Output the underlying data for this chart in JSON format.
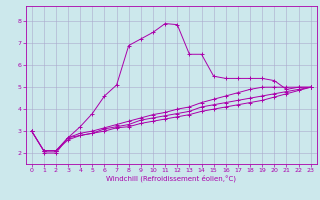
{
  "title": "",
  "xlabel": "Windchill (Refroidissement éolien,°C)",
  "ylabel": "",
  "background_color": "#cce8ec",
  "line_color": "#aa00aa",
  "grid_color": "#aaaacc",
  "xlim": [
    -0.5,
    23.5
  ],
  "ylim": [
    1.5,
    8.7
  ],
  "yticks": [
    2,
    3,
    4,
    5,
    6,
    7,
    8
  ],
  "xticks": [
    0,
    1,
    2,
    3,
    4,
    5,
    6,
    7,
    8,
    9,
    10,
    11,
    12,
    13,
    14,
    15,
    16,
    17,
    18,
    19,
    20,
    21,
    22,
    23
  ],
  "lines": [
    {
      "x": [
        1,
        2,
        3,
        4,
        5,
        6,
        7,
        8,
        9,
        10,
        11,
        12,
        13,
        14,
        15,
        16,
        17,
        18,
        19,
        20,
        21,
        22,
        23
      ],
      "y": [
        2.0,
        2.0,
        2.7,
        3.2,
        3.8,
        4.6,
        5.1,
        6.9,
        7.2,
        7.5,
        7.9,
        7.85,
        6.5,
        6.5,
        5.5,
        5.4,
        5.4,
        5.4,
        5.4,
        5.3,
        4.9,
        5.0,
        5.0
      ]
    },
    {
      "x": [
        0,
        1,
        2,
        3,
        4,
        5,
        6,
        7,
        8,
        9,
        10,
        11,
        12,
        13,
        14,
        15,
        16,
        17,
        18,
        19,
        20,
        21,
        22,
        23
      ],
      "y": [
        3.0,
        2.1,
        2.1,
        2.7,
        2.8,
        2.9,
        3.1,
        3.2,
        3.3,
        3.5,
        3.6,
        3.7,
        3.8,
        3.9,
        4.1,
        4.2,
        4.3,
        4.4,
        4.5,
        4.6,
        4.7,
        4.8,
        4.9,
        5.0
      ]
    },
    {
      "x": [
        0,
        1,
        2,
        3,
        4,
        5,
        6,
        7,
        8,
        9,
        10,
        11,
        12,
        13,
        14,
        15,
        16,
        17,
        18,
        19,
        20,
        21,
        22,
        23
      ],
      "y": [
        3.0,
        2.1,
        2.1,
        2.6,
        2.8,
        2.9,
        3.0,
        3.15,
        3.2,
        3.35,
        3.45,
        3.55,
        3.65,
        3.75,
        3.9,
        4.0,
        4.1,
        4.2,
        4.3,
        4.4,
        4.55,
        4.7,
        4.85,
        5.0
      ]
    },
    {
      "x": [
        0,
        1,
        2,
        3,
        4,
        5,
        6,
        7,
        8,
        9,
        10,
        11,
        12,
        13,
        14,
        15,
        16,
        17,
        18,
        19,
        20,
        21,
        22,
        23
      ],
      "y": [
        3.0,
        2.1,
        2.1,
        2.7,
        2.9,
        3.0,
        3.15,
        3.3,
        3.45,
        3.6,
        3.75,
        3.85,
        4.0,
        4.1,
        4.3,
        4.45,
        4.6,
        4.75,
        4.9,
        5.0,
        5.0,
        5.0,
        5.0,
        5.0
      ]
    }
  ],
  "tick_labelsize": 4.5,
  "xlabel_fontsize": 5.0,
  "linewidth": 0.7,
  "markersize": 3.0,
  "markeredgewidth": 0.7
}
